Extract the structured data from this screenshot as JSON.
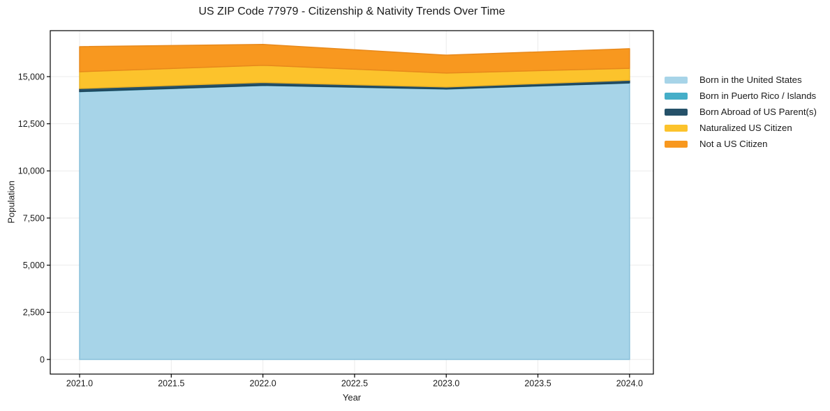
{
  "colors": {
    "background": "#ffffff",
    "grid": "#ebebeb",
    "spine": "#000000",
    "text": "#1a1a1a"
  },
  "chart_data": {
    "type": "area",
    "stacked": true,
    "title": "US ZIP Code 77979 - Citizenship & Nativity Trends Over Time",
    "xlabel": "Year",
    "ylabel": "Population",
    "x": [
      2021,
      2022,
      2023,
      2024
    ],
    "series": [
      {
        "name": "Born in the United States",
        "values": [
          14200,
          14530,
          14340,
          14660
        ],
        "color": "#a7d4e8",
        "edge": "#88c0da"
      },
      {
        "name": "Born in Puerto Rico / Islands",
        "values": [
          10,
          10,
          10,
          10
        ],
        "color": "#45aec8",
        "edge": "#3694ad"
      },
      {
        "name": "Born Abroad of US Parent(s)",
        "values": [
          160,
          150,
          100,
          140
        ],
        "color": "#255169",
        "edge": "#1d4257"
      },
      {
        "name": "Naturalized US Citizen",
        "values": [
          890,
          910,
          740,
          630
        ],
        "color": "#fcc32c",
        "edge": "#eab225"
      },
      {
        "name": "Not a US Citizen",
        "values": [
          1330,
          1110,
          950,
          1040
        ],
        "color": "#f8981f",
        "edge": "#e8891b"
      }
    ],
    "xlim": [
      2020.84,
      2024.13
    ],
    "ylim": [
      -776,
      17438
    ],
    "xticks": {
      "values": [
        2021,
        2021.5,
        2022,
        2022.5,
        2023,
        2023.5,
        2024
      ],
      "labels": [
        "2021.0",
        "2021.5",
        "2022.0",
        "2022.5",
        "2023.0",
        "2023.5",
        "2024.0"
      ]
    },
    "yticks": {
      "values": [
        0,
        2500,
        5000,
        7500,
        10000,
        12500,
        15000
      ],
      "labels": [
        "0",
        "2,500",
        "5,000",
        "7,500",
        "10,000",
        "12,500",
        "15,000"
      ]
    },
    "grid": true,
    "legend_position": "right"
  }
}
